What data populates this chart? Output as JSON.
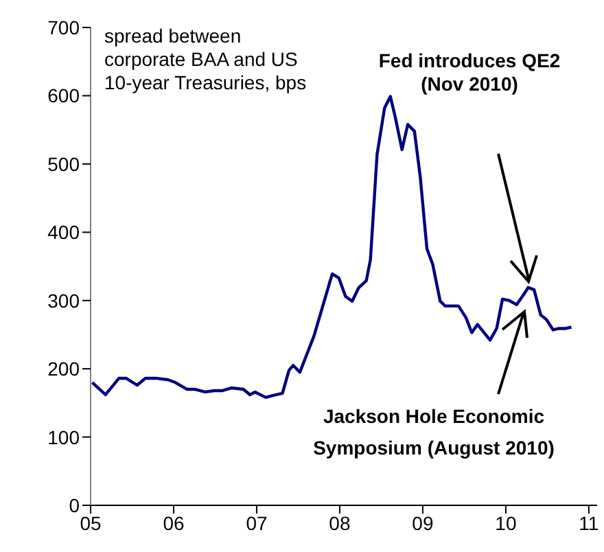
{
  "chart_data": {
    "type": "line",
    "annotations": [
      "spread between corporate BAA and US 10-year Treasuries, bps",
      "Fed introduces QE2 (Nov 2010)",
      "Jackson Hole Economic Symposium (August 2010)"
    ],
    "x": [
      2005.02,
      2005.18,
      2005.34,
      2005.43,
      2005.56,
      2005.66,
      2005.8,
      2005.93,
      2006.02,
      2006.16,
      2006.25,
      2006.38,
      2006.49,
      2006.59,
      2006.7,
      2006.84,
      2006.92,
      2006.98,
      2007.11,
      2007.2,
      2007.31,
      2007.39,
      2007.44,
      2007.52,
      2007.69,
      2007.91,
      2007.99,
      2008.07,
      2008.15,
      2008.23,
      2008.32,
      2008.37,
      2008.45,
      2008.54,
      2008.61,
      2008.67,
      2008.75,
      2008.82,
      2008.9,
      2008.97,
      2009.05,
      2009.12,
      2009.21,
      2009.27,
      2009.43,
      2009.52,
      2009.59,
      2009.66,
      2009.81,
      2009.89,
      2009.96,
      2010.04,
      2010.13,
      2010.2,
      2010.27,
      2010.34,
      2010.42,
      2010.49,
      2010.57,
      2010.64,
      2010.72,
      2010.79
    ],
    "series": [
      {
        "color": "#000080",
        "values": [
          180,
          162,
          186,
          186,
          176,
          186,
          186,
          184,
          180,
          170,
          170,
          166,
          168,
          168,
          172,
          170,
          162,
          166,
          158,
          161,
          164,
          198,
          205,
          195,
          248,
          339,
          333,
          306,
          299,
          319,
          329,
          360,
          514,
          582,
          599,
          568,
          521,
          558,
          548,
          481,
          376,
          353,
          299,
          292,
          292,
          275,
          253,
          265,
          242,
          259,
          302,
          300,
          294,
          306,
          319,
          316,
          279,
          272,
          257,
          259,
          259,
          261
        ]
      }
    ],
    "xlim": [
      2005,
      2011.1
    ],
    "xticks": [
      {
        "value": 2005,
        "label": "05"
      },
      {
        "value": 2006,
        "label": "06"
      },
      {
        "value": 2007,
        "label": "07"
      },
      {
        "value": 2008,
        "label": "08"
      },
      {
        "value": 2009,
        "label": "09"
      },
      {
        "value": 2010,
        "label": "10"
      },
      {
        "value": 2011,
        "label": "11"
      }
    ],
    "ylim": [
      0,
      700
    ],
    "yticks": [
      0,
      100,
      200,
      300,
      400,
      500,
      600,
      700
    ],
    "grid": false,
    "marker": "none",
    "line_style": "solid"
  }
}
